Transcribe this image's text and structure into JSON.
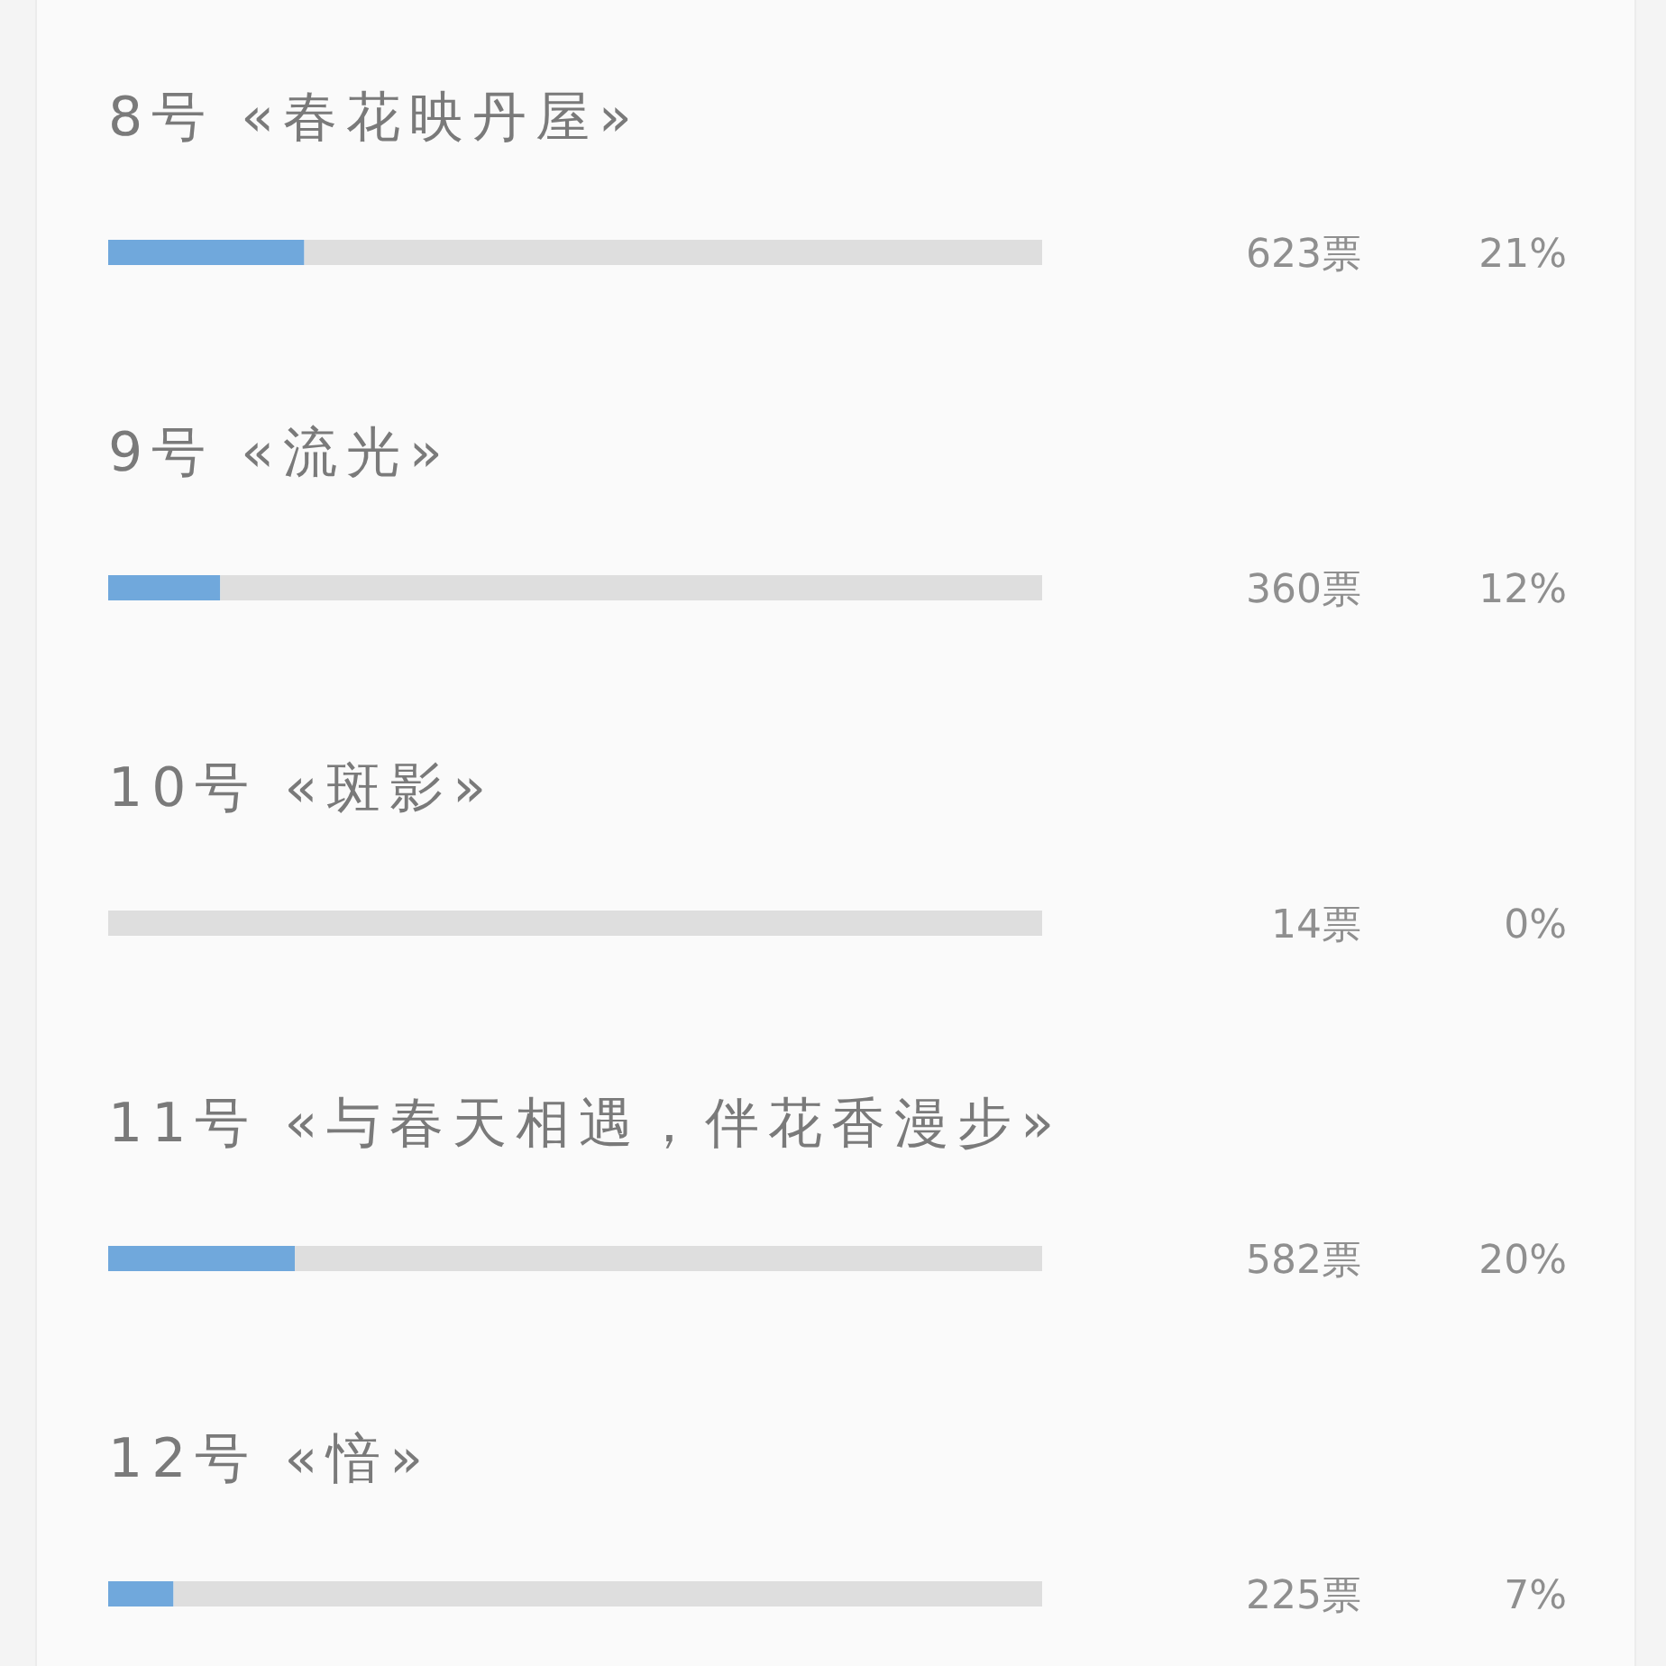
{
  "chart_data": {
    "type": "bar",
    "orientation": "horizontal",
    "stacked": true,
    "tick_labels": "y",
    "categories": [
      "8号 «春花映丹屋»",
      "9号 «流光»",
      "10号 «斑影»",
      "11号 «与春天相遇，伴花香漫步»",
      "12号 «愔»"
    ],
    "series": [
      {
        "color": "#70a8dc",
        "values": [
          21,
          12,
          0,
          20,
          7
        ],
        "value_labels": [
          "21%",
          "12%",
          "0%",
          "20%",
          "7%"
        ]
      },
      {
        "color": "#dedede",
        "values": [
          79,
          88,
          100,
          80,
          93
        ]
      }
    ],
    "xlim": [
      0,
      100
    ],
    "annotations": [
      "623票",
      "360票",
      "14票",
      "582票",
      "225票"
    ]
  }
}
